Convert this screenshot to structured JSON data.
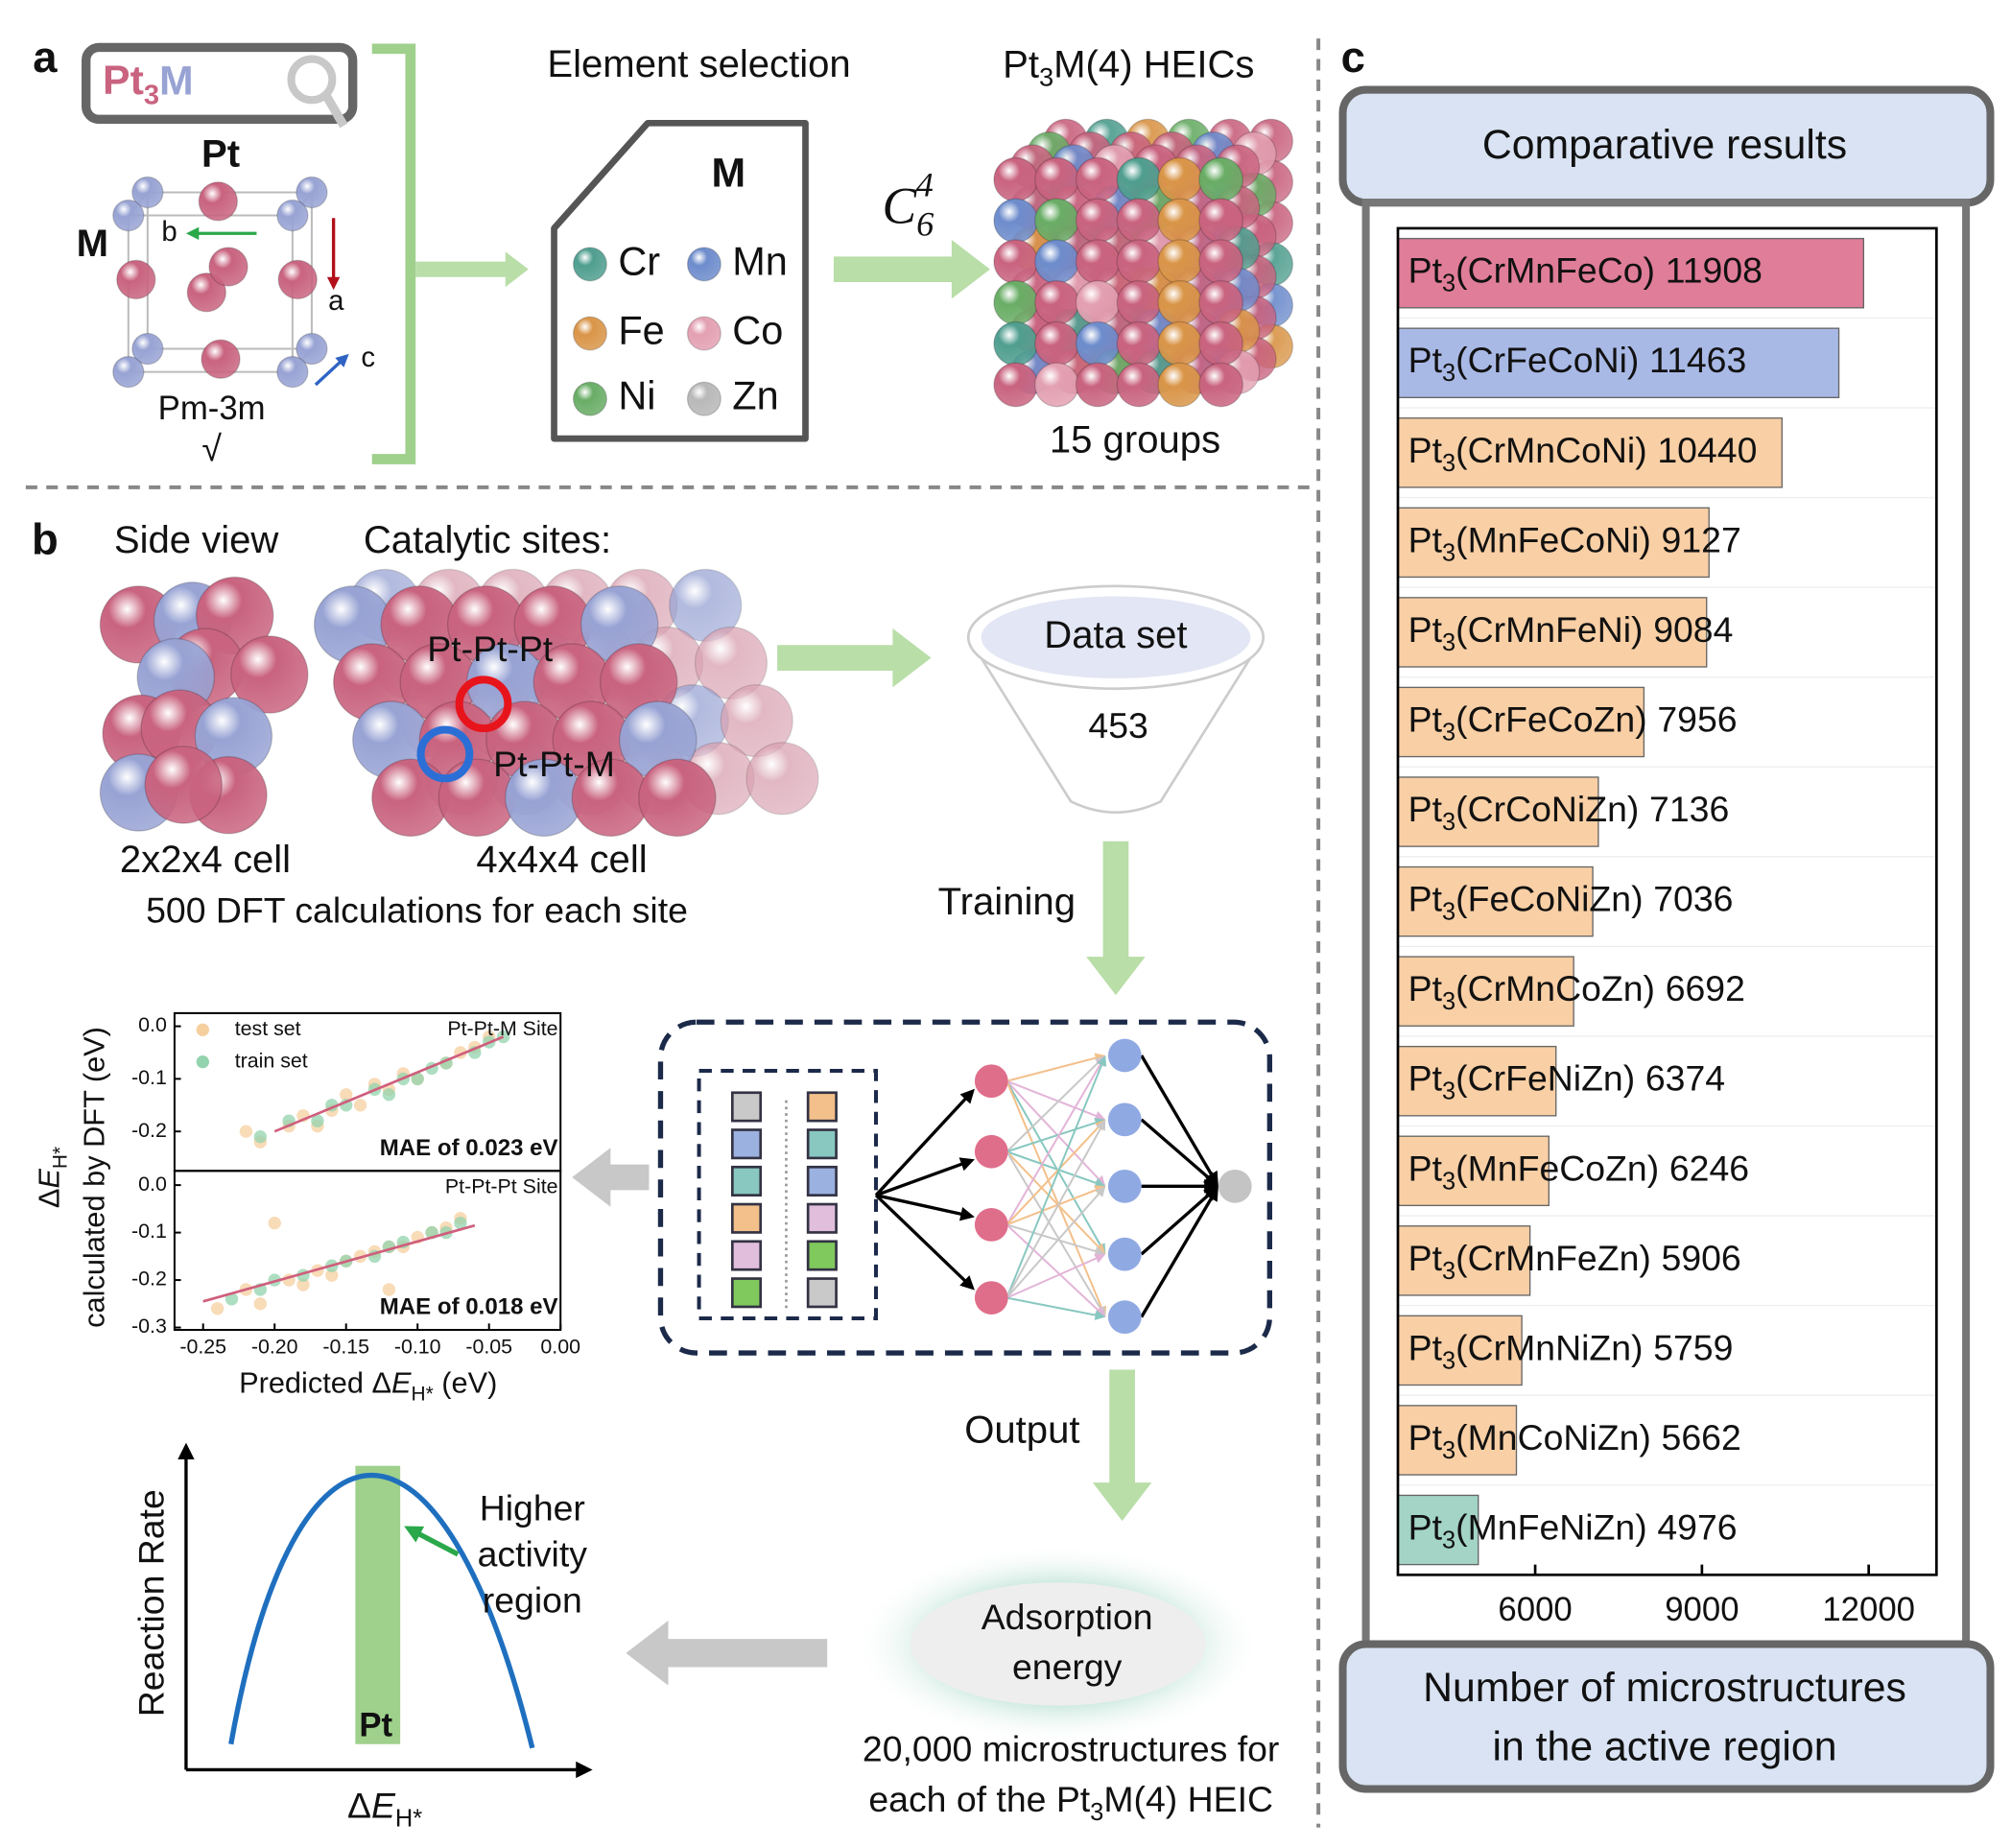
{
  "panel_a": {
    "label": "a",
    "search": {
      "base": "Pt",
      "sub": "3",
      "m": "M"
    },
    "structure": {
      "pt": "Pt",
      "m": "M",
      "axis_b": "b",
      "axis_a": "a",
      "axis_c": "c",
      "space_group": "Pm-3m",
      "check": "√"
    },
    "selection": {
      "title": "Element selection",
      "doc": "M",
      "elements": [
        {
          "symbol": "Cr",
          "color": "#4f9e8f"
        },
        {
          "symbol": "Mn",
          "color": "#6d8ccc"
        },
        {
          "symbol": "Fe",
          "color": "#d99548"
        },
        {
          "symbol": "Co",
          "color": "#e3a0b2"
        },
        {
          "symbol": "Ni",
          "color": "#69ad66"
        },
        {
          "symbol": "Zn",
          "color": "#b8b8b8"
        }
      ]
    },
    "combination": {
      "base": "C",
      "sub": "6",
      "sup": "4"
    },
    "heics": {
      "title": {
        "base": "Pt",
        "sub": "3",
        "rest": "M(4) HEICs"
      },
      "groups": "15 groups"
    }
  },
  "panel_b": {
    "label": "b",
    "side_view": "Side view",
    "sites_title": "Catalytic sites:",
    "site_ppp": "Pt-Pt-Pt",
    "site_ppm": "Pt-Pt-M",
    "cell_small": "2x2x4 cell",
    "cell_large": "4x4x4 cell",
    "dft_note": "500 DFT calculations for each site",
    "dataset": {
      "title": "Data set",
      "count": 453
    },
    "training": "Training",
    "output": "Output",
    "adsorption": {
      "line1": "Adsorption",
      "line2": "energy"
    },
    "footnote": {
      "line1": "20,000 microstructures for",
      "line2_pre": "each of the Pt",
      "line2_sub": "3",
      "line2_post": "M(4) HEIC"
    },
    "volcano": {
      "y_label": "Reaction Rate",
      "x_label": {
        "pre": "Δ",
        "sym": "E",
        "sub": "H*"
      },
      "region": [
        "Higher",
        "activity",
        "region"
      ],
      "band": "Pt"
    }
  },
  "panel_c": {
    "label": "c"
  },
  "chart_data": [
    {
      "type": "scatter",
      "site": "Pt-Pt-M Site",
      "mae": "MAE of 0.023 eV",
      "mae_color": "#a3b1dc",
      "y_label": {
        "pre": "Δ",
        "sym": "E",
        "sub": "H*"
      },
      "y_label_2": "calculated by DFT (eV)",
      "x_label": {
        "pre": "Predicted Δ",
        "sym": "E",
        "sub": "H*",
        "post": " (eV)"
      },
      "xlim": [
        -0.27,
        0.0
      ],
      "ylim": [
        -0.275,
        0.025
      ],
      "yticks": [
        {
          "value": 0,
          "label": "0.0"
        },
        -0.1,
        -0.2
      ],
      "series": [
        {
          "name": "test set",
          "color": "#f6cf9f",
          "x": [
            -0.22,
            -0.21,
            -0.19,
            -0.18,
            -0.17,
            -0.16,
            -0.15,
            -0.14,
            -0.13,
            -0.12,
            -0.11,
            -0.1,
            -0.08,
            -0.07,
            -0.06,
            -0.05
          ],
          "values": [
            -0.2,
            -0.22,
            -0.19,
            -0.17,
            -0.19,
            -0.16,
            -0.13,
            -0.15,
            -0.11,
            -0.12,
            -0.09,
            -0.1,
            -0.07,
            -0.05,
            -0.04,
            -0.02
          ]
        },
        {
          "name": "train set",
          "color": "#93d3ae",
          "x": [
            -0.21,
            -0.19,
            -0.17,
            -0.16,
            -0.15,
            -0.13,
            -0.12,
            -0.11,
            -0.1,
            -0.09,
            -0.08,
            -0.06,
            -0.05,
            -0.04
          ],
          "values": [
            -0.21,
            -0.18,
            -0.18,
            -0.15,
            -0.15,
            -0.12,
            -0.13,
            -0.1,
            -0.1,
            -0.08,
            -0.07,
            -0.05,
            -0.03,
            -0.02
          ]
        }
      ],
      "fit": {
        "color": "#cf5e7c",
        "x": [
          -0.2,
          -0.04
        ],
        "values": [
          -0.2,
          -0.02
        ]
      }
    },
    {
      "type": "scatter",
      "site": "Pt-Pt-Pt Site",
      "mae": "MAE of 0.018 eV",
      "mae_color": "#cf5e7c",
      "xlim": [
        -0.27,
        0.0
      ],
      "ylim": [
        -0.305,
        0.03
      ],
      "xticks": [
        -0.25,
        {
          "value": -0.2,
          "label": "-0.20"
        },
        -0.15,
        {
          "value": -0.1,
          "label": "-0.10"
        },
        -0.05,
        {
          "value": 0,
          "label": "0.00"
        }
      ],
      "yticks": [
        {
          "value": 0,
          "label": "0.0"
        },
        -0.1,
        -0.2,
        -0.3
      ],
      "series": [
        {
          "color": "#f6cf9f",
          "x": [
            -0.24,
            -0.22,
            -0.21,
            -0.19,
            -0.18,
            -0.17,
            -0.16,
            -0.15,
            -0.14,
            -0.13,
            -0.12,
            -0.11,
            -0.1,
            -0.09,
            -0.08,
            -0.07,
            -0.2,
            -0.12
          ],
          "values": [
            -0.26,
            -0.22,
            -0.25,
            -0.2,
            -0.21,
            -0.18,
            -0.19,
            -0.16,
            -0.15,
            -0.14,
            -0.13,
            -0.13,
            -0.11,
            -0.1,
            -0.09,
            -0.07,
            -0.08,
            -0.22
          ]
        },
        {
          "color": "#93d3ae",
          "x": [
            -0.23,
            -0.21,
            -0.2,
            -0.18,
            -0.16,
            -0.15,
            -0.13,
            -0.12,
            -0.11,
            -0.09,
            -0.08,
            -0.07
          ],
          "values": [
            -0.24,
            -0.22,
            -0.2,
            -0.19,
            -0.17,
            -0.16,
            -0.15,
            -0.13,
            -0.12,
            -0.1,
            -0.1,
            -0.08
          ]
        }
      ],
      "fit": {
        "color": "#cf5e7c",
        "x": [
          -0.25,
          -0.06
        ],
        "values": [
          -0.245,
          -0.085
        ]
      }
    },
    {
      "type": "bar",
      "orientation": "horizontal",
      "title": "Comparative results",
      "x_label": [
        "Number of microstructures",
        "in the active region"
      ],
      "prefix": "Pt",
      "prefix_sub": "3",
      "categories": [
        "(CrMnFeCo)",
        "(CrFeCoNi)",
        "(CrMnCoNi)",
        "(MnFeCoNi)",
        "(CrMnFeNi)",
        "(CrFeCoZn)",
        "(CrCoNiZn)",
        "(FeCoNiZn)",
        "(CrMnCoZn)",
        "(CrFeNiZn)",
        "(MnFeCoZn)",
        "(CrMnFeZn)",
        "(CrMnNiZn)",
        "(MnCoNiZn)",
        "(MnFeNiZn)"
      ],
      "values": [
        11908,
        11463,
        10440,
        9127,
        9084,
        7956,
        7136,
        7036,
        6692,
        6374,
        6246,
        5906,
        5759,
        5662,
        4976
      ],
      "colors": [
        "#e07d98",
        "#a9b9e6",
        "#f9cfa5",
        "#f9cfa5",
        "#f9cfa5",
        "#f9cfa5",
        "#f9cfa5",
        "#f9cfa5",
        "#f9cfa5",
        "#f9cfa5",
        "#f9cfa5",
        "#f9cfa5",
        "#f9cfa5",
        "#f9cfa5",
        "#a3d4c6"
      ],
      "xlim": [
        3530,
        13220
      ],
      "xticks": [
        6000,
        9000,
        12000
      ]
    }
  ]
}
